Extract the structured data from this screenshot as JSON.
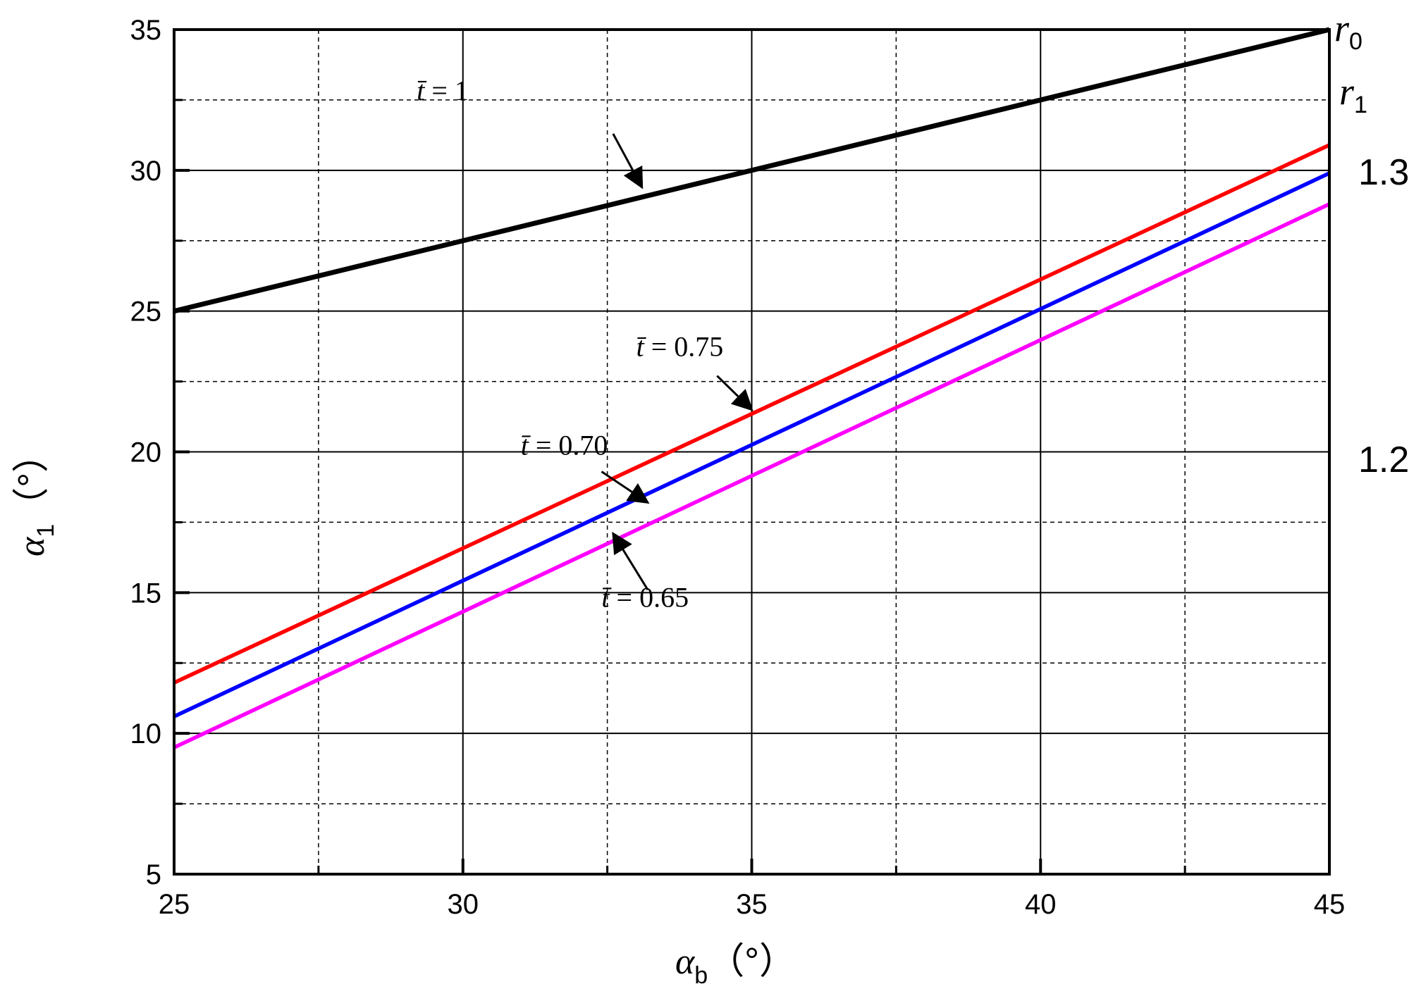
{
  "chart_data": {
    "type": "line",
    "xlabel": "α",
    "xlabel_sub": "b",
    "xlabel_unit": "（°）",
    "ylabel": "α",
    "ylabel_sub": "1",
    "ylabel_unit": "（°）",
    "xlim": [
      25,
      45
    ],
    "ylim": [
      5,
      35
    ],
    "xticks": [
      25,
      30,
      35,
      40,
      45
    ],
    "yticks": [
      5,
      10,
      15,
      20,
      25,
      30,
      35
    ],
    "xticks_minor": [
      27.5,
      32.5,
      37.5,
      42.5
    ],
    "yticks_minor": [
      7.5,
      12.5,
      17.5,
      22.5,
      27.5,
      32.5
    ],
    "grid": true,
    "series": [
      {
        "name": "t̄ = 1",
        "color": "#000000",
        "x": [
          25,
          45
        ],
        "y": [
          25.0,
          35.0
        ]
      },
      {
        "name": "t̄ = 0.75",
        "color": "#ff0000",
        "x": [
          25,
          45
        ],
        "y": [
          11.8,
          30.9
        ]
      },
      {
        "name": "t̄ = 0.70",
        "color": "#0000ff",
        "x": [
          25,
          45
        ],
        "y": [
          10.6,
          29.9
        ]
      },
      {
        "name": "t̄ = 0.65",
        "color": "#ff00ff",
        "x": [
          25,
          45
        ],
        "y": [
          9.5,
          28.8
        ]
      }
    ],
    "annotations": [
      {
        "symbol": "t̄",
        "text": "= 1",
        "target_series": 0
      },
      {
        "symbol": "t̄",
        "text": "= 0.75",
        "target_series": 1
      },
      {
        "symbol": "t̄",
        "text": "= 0.70",
        "target_series": 2
      },
      {
        "symbol": "t̄",
        "text": "= 0.65",
        "target_series": 3
      }
    ],
    "right_labels": {
      "r0_symbol": "r",
      "r0_sub": "0",
      "r1_symbol": "r",
      "r1_sub": "1",
      "val_13": "1.3",
      "val_12": "1.2"
    }
  }
}
